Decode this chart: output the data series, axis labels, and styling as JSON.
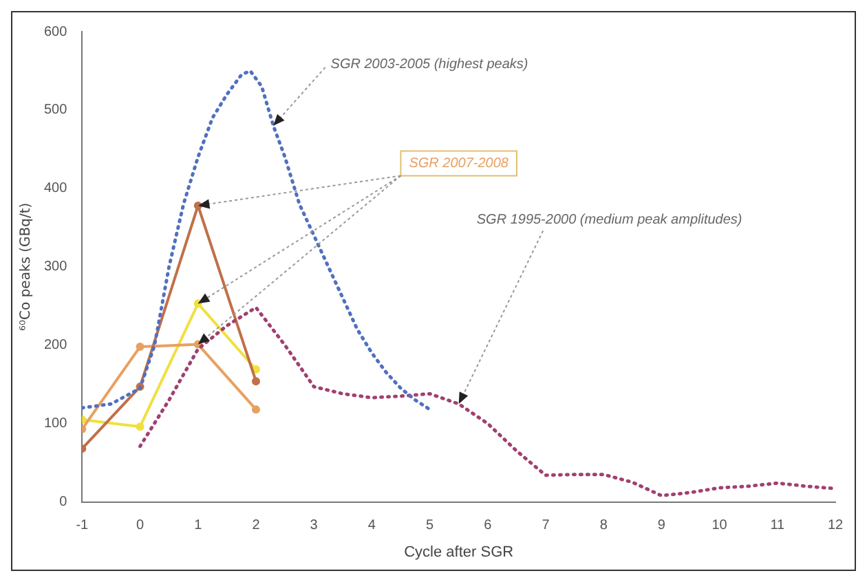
{
  "chart_data": {
    "type": "line",
    "xlabel": "Cycle after SGR",
    "ylabel": "⁶⁰Co peaks (GBq/t)",
    "xlim": [
      -1,
      12
    ],
    "xticks": [
      -1,
      0,
      1,
      2,
      3,
      4,
      5,
      6,
      7,
      8,
      9,
      10,
      11,
      12
    ],
    "ylim": [
      0,
      600
    ],
    "yticks": [
      0,
      100,
      200,
      300,
      400,
      500,
      600
    ],
    "grid": false,
    "series": [
      {
        "color": "#5070c0",
        "line_style": "dotted",
        "marker": "none",
        "x": [
          -1,
          -0.5,
          0,
          0.25,
          0.5,
          0.75,
          1,
          1.25,
          1.5,
          1.75,
          1.9,
          2.1,
          2.3,
          2.5,
          2.75,
          3,
          3.25,
          3.5,
          3.75,
          4,
          4.25,
          4.5,
          4.75,
          5
        ],
        "values": [
          120,
          125,
          145,
          200,
          300,
          380,
          440,
          490,
          520,
          545,
          550,
          530,
          480,
          440,
          380,
          340,
          300,
          260,
          220,
          190,
          165,
          145,
          130,
          118
        ]
      },
      {
        "color": "#a04070",
        "line_style": "dotted",
        "marker": "none",
        "x": [
          0,
          0.5,
          1,
          1.5,
          2,
          2.5,
          3,
          3.5,
          4,
          4.5,
          5,
          5.5,
          6,
          6.5,
          7,
          7.5,
          8,
          8.5,
          9,
          9.5,
          10,
          10.5,
          11,
          11.5,
          12
        ],
        "values": [
          71,
          130,
          195,
          225,
          248,
          200,
          147,
          138,
          133,
          135,
          138,
          125,
          100,
          65,
          34,
          35,
          35,
          25,
          8,
          12,
          18,
          20,
          24,
          20,
          17
        ]
      },
      {
        "color": "#c0704a",
        "line_style": "solid",
        "marker": "circle",
        "x": [
          -1,
          0,
          1,
          2
        ],
        "values": [
          68,
          147,
          378,
          154
        ]
      },
      {
        "color": "#e8a060",
        "line_style": "solid",
        "marker": "circle",
        "x": [
          -1,
          0,
          1,
          2
        ],
        "values": [
          93,
          198,
          201,
          118
        ]
      },
      {
        "color": "#f0e040",
        "line_style": "solid",
        "marker": "circle",
        "x": [
          -1,
          0,
          1,
          2
        ],
        "values": [
          105,
          96,
          253,
          169
        ]
      }
    ],
    "annotations": [
      {
        "text": "SGR 2003-2005 (highest peaks)",
        "x": 2.3,
        "y": 480
      },
      {
        "text": "SGR 2007-2008",
        "x": 1,
        "y": 378
      },
      {
        "text": "SGR 1995-2000 (medium peak amplitudes)",
        "x": 5.5,
        "y": 125
      }
    ]
  }
}
